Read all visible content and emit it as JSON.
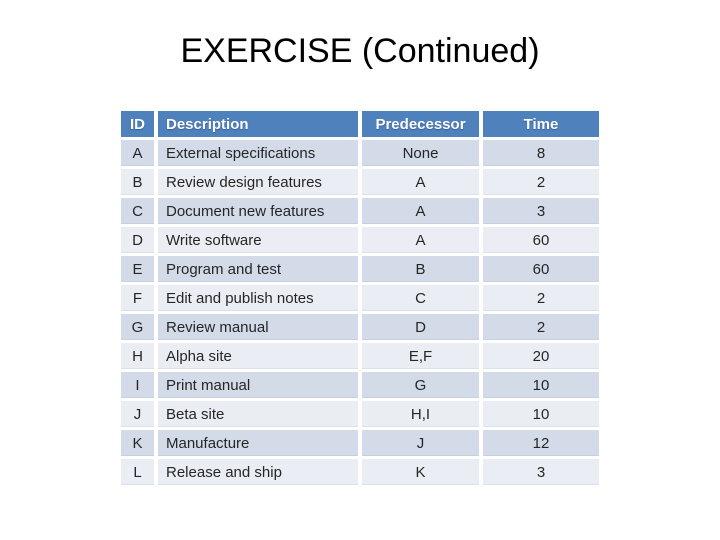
{
  "slide": {
    "title": "EXERCISE (Continued)"
  },
  "table": {
    "columns": [
      {
        "key": "id",
        "label": "ID"
      },
      {
        "key": "description",
        "label": "Description"
      },
      {
        "key": "predecessor",
        "label": "Predecessor"
      },
      {
        "key": "time",
        "label": "Time"
      }
    ],
    "rows": [
      {
        "id": "A",
        "description": "External specifications",
        "predecessor": "None",
        "time": "8"
      },
      {
        "id": "B",
        "description": "Review design features",
        "predecessor": "A",
        "time": "2"
      },
      {
        "id": "C",
        "description": "Document new features",
        "predecessor": "A",
        "time": "3"
      },
      {
        "id": "D",
        "description": "Write software",
        "predecessor": "A",
        "time": "60"
      },
      {
        "id": "E",
        "description": "Program and test",
        "predecessor": "B",
        "time": "60"
      },
      {
        "id": "F",
        "description": "Edit and publish notes",
        "predecessor": "C",
        "time": "2"
      },
      {
        "id": "G",
        "description": "Review manual",
        "predecessor": "D",
        "time": "2"
      },
      {
        "id": "H",
        "description": "Alpha site",
        "predecessor": "E,F",
        "time": "20"
      },
      {
        "id": "I",
        "description": "Print manual",
        "predecessor": "G",
        "time": "10"
      },
      {
        "id": "J",
        "description": "Beta site",
        "predecessor": "H,I",
        "time": "10"
      },
      {
        "id": "K",
        "description": "Manufacture",
        "predecessor": "J",
        "time": "12"
      },
      {
        "id": "L",
        "description": "Release and ship",
        "predecessor": "K",
        "time": "3"
      }
    ]
  },
  "colors": {
    "header_bg": "#4f81bd",
    "header_text": "#ffffff",
    "band_dark": "#d3dbe9",
    "band_light": "#eaedf3",
    "body_text": "#262626",
    "title_text": "#000000"
  }
}
